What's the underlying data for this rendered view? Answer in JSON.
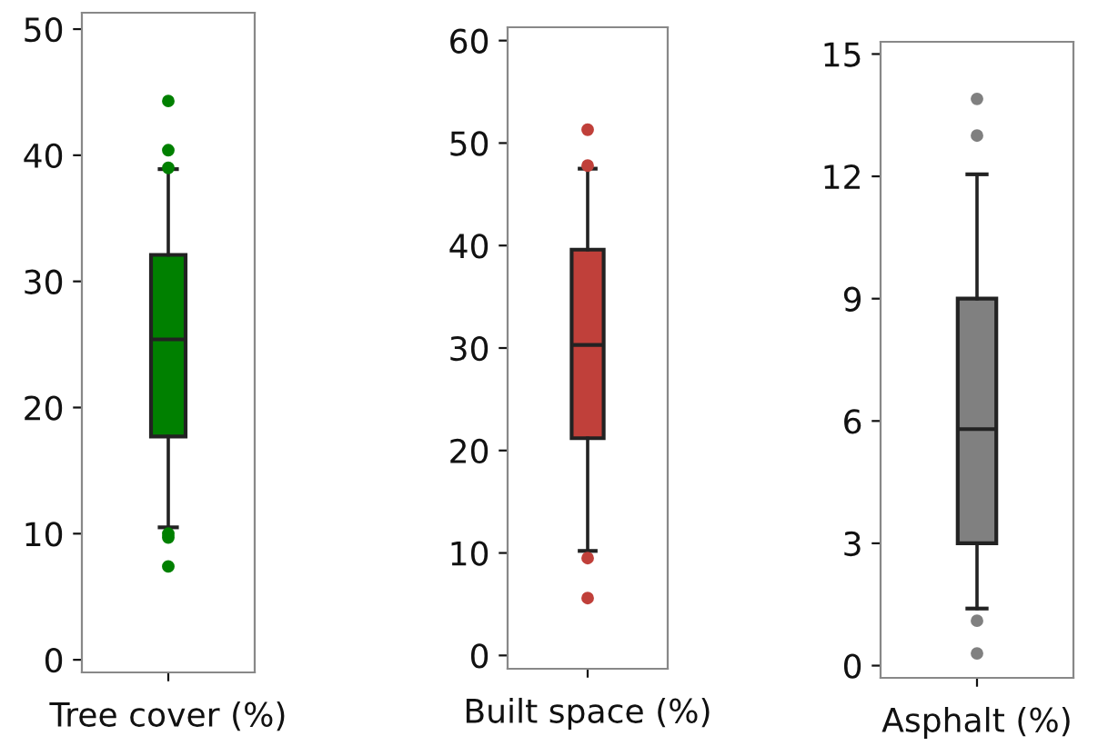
{
  "chart_data": [
    {
      "type": "box",
      "categories": [
        "Tree cover (%)"
      ],
      "color": "#008000",
      "ylim": [
        -1,
        51.3
      ],
      "yticks": [
        0,
        10,
        20,
        30,
        40,
        50
      ],
      "grid": false,
      "boxes": [
        {
          "low": 10.5,
          "q1": 17.7,
          "median": 25.4,
          "q3": 32.1,
          "high": 38.9,
          "outliers": [
            44.3,
            40.4,
            39.0,
            10.0,
            9.7,
            7.4
          ]
        }
      ]
    },
    {
      "type": "box",
      "categories": [
        "Built space (%)"
      ],
      "color": "#c0403a",
      "ylim": [
        -1.3,
        61.3
      ],
      "yticks": [
        0,
        10,
        20,
        30,
        40,
        50,
        60
      ],
      "grid": false,
      "boxes": [
        {
          "low": 10.2,
          "q1": 21.2,
          "median": 30.3,
          "q3": 39.6,
          "high": 47.5,
          "outliers": [
            51.3,
            47.8,
            9.5,
            5.6
          ]
        }
      ]
    },
    {
      "type": "box",
      "categories": [
        "Asphalt (%)"
      ],
      "color": "#808080",
      "ylim": [
        -0.3,
        15.3
      ],
      "yticks": [
        0,
        3,
        6,
        9,
        12,
        15
      ],
      "grid": false,
      "boxes": [
        {
          "low": 1.4,
          "q1": 3.0,
          "median": 5.8,
          "q3": 9.0,
          "high": 12.05,
          "outliers": [
            13.9,
            13.0,
            1.1,
            0.3
          ]
        }
      ]
    }
  ]
}
